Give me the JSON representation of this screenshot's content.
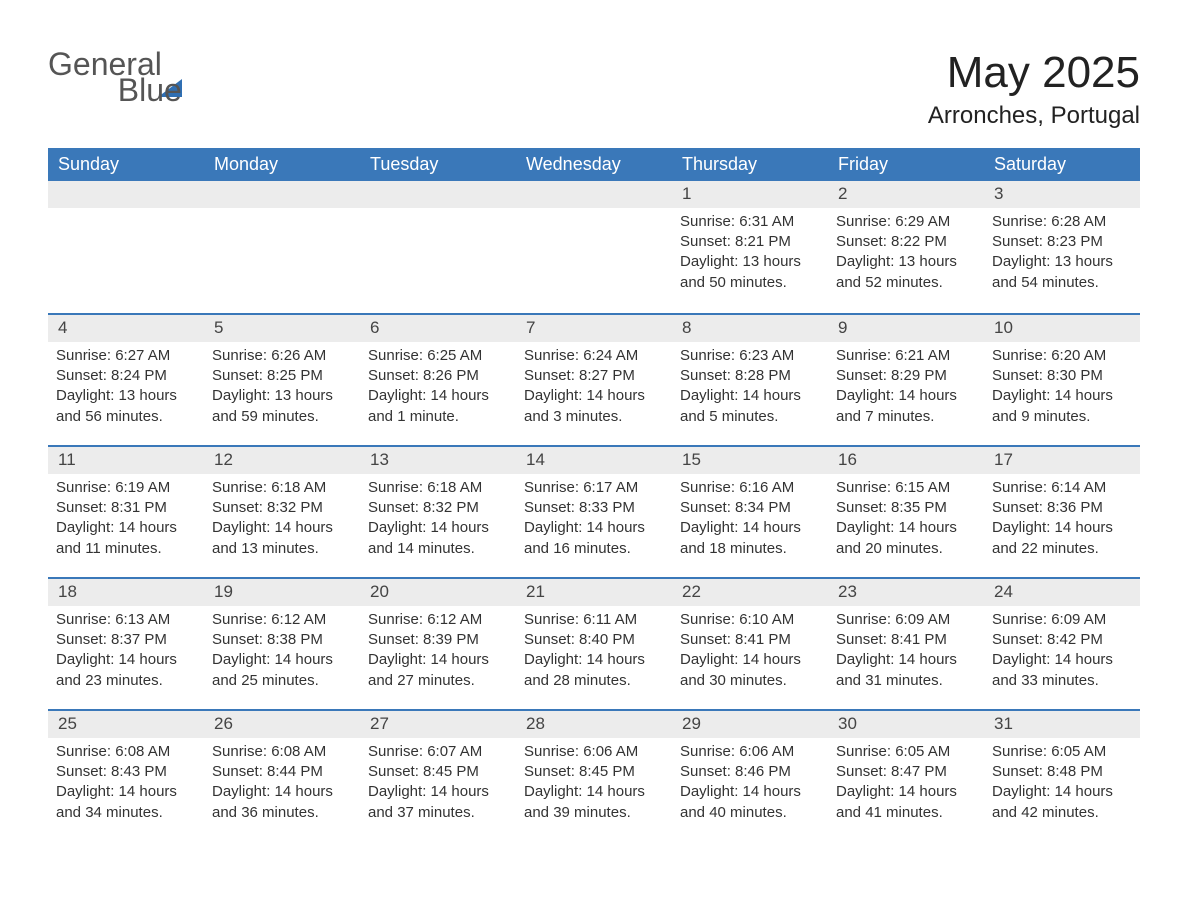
{
  "logo": {
    "word1": "General",
    "word2": "Blue"
  },
  "title": "May 2025",
  "location": "Arronches, Portugal",
  "colors": {
    "header_bg": "#3a78b9",
    "header_text": "#ffffff",
    "row_border": "#3a78b9",
    "daynum_bg": "#ececec",
    "text": "#333333",
    "logo_accent": "#2f6fb3"
  },
  "weekdays": [
    "Sunday",
    "Monday",
    "Tuesday",
    "Wednesday",
    "Thursday",
    "Friday",
    "Saturday"
  ],
  "weeks": [
    [
      null,
      null,
      null,
      null,
      {
        "n": "1",
        "sunrise": "Sunrise: 6:31 AM",
        "sunset": "Sunset: 8:21 PM",
        "daylight": "Daylight: 13 hours and 50 minutes."
      },
      {
        "n": "2",
        "sunrise": "Sunrise: 6:29 AM",
        "sunset": "Sunset: 8:22 PM",
        "daylight": "Daylight: 13 hours and 52 minutes."
      },
      {
        "n": "3",
        "sunrise": "Sunrise: 6:28 AM",
        "sunset": "Sunset: 8:23 PM",
        "daylight": "Daylight: 13 hours and 54 minutes."
      }
    ],
    [
      {
        "n": "4",
        "sunrise": "Sunrise: 6:27 AM",
        "sunset": "Sunset: 8:24 PM",
        "daylight": "Daylight: 13 hours and 56 minutes."
      },
      {
        "n": "5",
        "sunrise": "Sunrise: 6:26 AM",
        "sunset": "Sunset: 8:25 PM",
        "daylight": "Daylight: 13 hours and 59 minutes."
      },
      {
        "n": "6",
        "sunrise": "Sunrise: 6:25 AM",
        "sunset": "Sunset: 8:26 PM",
        "daylight": "Daylight: 14 hours and 1 minute."
      },
      {
        "n": "7",
        "sunrise": "Sunrise: 6:24 AM",
        "sunset": "Sunset: 8:27 PM",
        "daylight": "Daylight: 14 hours and 3 minutes."
      },
      {
        "n": "8",
        "sunrise": "Sunrise: 6:23 AM",
        "sunset": "Sunset: 8:28 PM",
        "daylight": "Daylight: 14 hours and 5 minutes."
      },
      {
        "n": "9",
        "sunrise": "Sunrise: 6:21 AM",
        "sunset": "Sunset: 8:29 PM",
        "daylight": "Daylight: 14 hours and 7 minutes."
      },
      {
        "n": "10",
        "sunrise": "Sunrise: 6:20 AM",
        "sunset": "Sunset: 8:30 PM",
        "daylight": "Daylight: 14 hours and 9 minutes."
      }
    ],
    [
      {
        "n": "11",
        "sunrise": "Sunrise: 6:19 AM",
        "sunset": "Sunset: 8:31 PM",
        "daylight": "Daylight: 14 hours and 11 minutes."
      },
      {
        "n": "12",
        "sunrise": "Sunrise: 6:18 AM",
        "sunset": "Sunset: 8:32 PM",
        "daylight": "Daylight: 14 hours and 13 minutes."
      },
      {
        "n": "13",
        "sunrise": "Sunrise: 6:18 AM",
        "sunset": "Sunset: 8:32 PM",
        "daylight": "Daylight: 14 hours and 14 minutes."
      },
      {
        "n": "14",
        "sunrise": "Sunrise: 6:17 AM",
        "sunset": "Sunset: 8:33 PM",
        "daylight": "Daylight: 14 hours and 16 minutes."
      },
      {
        "n": "15",
        "sunrise": "Sunrise: 6:16 AM",
        "sunset": "Sunset: 8:34 PM",
        "daylight": "Daylight: 14 hours and 18 minutes."
      },
      {
        "n": "16",
        "sunrise": "Sunrise: 6:15 AM",
        "sunset": "Sunset: 8:35 PM",
        "daylight": "Daylight: 14 hours and 20 minutes."
      },
      {
        "n": "17",
        "sunrise": "Sunrise: 6:14 AM",
        "sunset": "Sunset: 8:36 PM",
        "daylight": "Daylight: 14 hours and 22 minutes."
      }
    ],
    [
      {
        "n": "18",
        "sunrise": "Sunrise: 6:13 AM",
        "sunset": "Sunset: 8:37 PM",
        "daylight": "Daylight: 14 hours and 23 minutes."
      },
      {
        "n": "19",
        "sunrise": "Sunrise: 6:12 AM",
        "sunset": "Sunset: 8:38 PM",
        "daylight": "Daylight: 14 hours and 25 minutes."
      },
      {
        "n": "20",
        "sunrise": "Sunrise: 6:12 AM",
        "sunset": "Sunset: 8:39 PM",
        "daylight": "Daylight: 14 hours and 27 minutes."
      },
      {
        "n": "21",
        "sunrise": "Sunrise: 6:11 AM",
        "sunset": "Sunset: 8:40 PM",
        "daylight": "Daylight: 14 hours and 28 minutes."
      },
      {
        "n": "22",
        "sunrise": "Sunrise: 6:10 AM",
        "sunset": "Sunset: 8:41 PM",
        "daylight": "Daylight: 14 hours and 30 minutes."
      },
      {
        "n": "23",
        "sunrise": "Sunrise: 6:09 AM",
        "sunset": "Sunset: 8:41 PM",
        "daylight": "Daylight: 14 hours and 31 minutes."
      },
      {
        "n": "24",
        "sunrise": "Sunrise: 6:09 AM",
        "sunset": "Sunset: 8:42 PM",
        "daylight": "Daylight: 14 hours and 33 minutes."
      }
    ],
    [
      {
        "n": "25",
        "sunrise": "Sunrise: 6:08 AM",
        "sunset": "Sunset: 8:43 PM",
        "daylight": "Daylight: 14 hours and 34 minutes."
      },
      {
        "n": "26",
        "sunrise": "Sunrise: 6:08 AM",
        "sunset": "Sunset: 8:44 PM",
        "daylight": "Daylight: 14 hours and 36 minutes."
      },
      {
        "n": "27",
        "sunrise": "Sunrise: 6:07 AM",
        "sunset": "Sunset: 8:45 PM",
        "daylight": "Daylight: 14 hours and 37 minutes."
      },
      {
        "n": "28",
        "sunrise": "Sunrise: 6:06 AM",
        "sunset": "Sunset: 8:45 PM",
        "daylight": "Daylight: 14 hours and 39 minutes."
      },
      {
        "n": "29",
        "sunrise": "Sunrise: 6:06 AM",
        "sunset": "Sunset: 8:46 PM",
        "daylight": "Daylight: 14 hours and 40 minutes."
      },
      {
        "n": "30",
        "sunrise": "Sunrise: 6:05 AM",
        "sunset": "Sunset: 8:47 PM",
        "daylight": "Daylight: 14 hours and 41 minutes."
      },
      {
        "n": "31",
        "sunrise": "Sunrise: 6:05 AM",
        "sunset": "Sunset: 8:48 PM",
        "daylight": "Daylight: 14 hours and 42 minutes."
      }
    ]
  ]
}
